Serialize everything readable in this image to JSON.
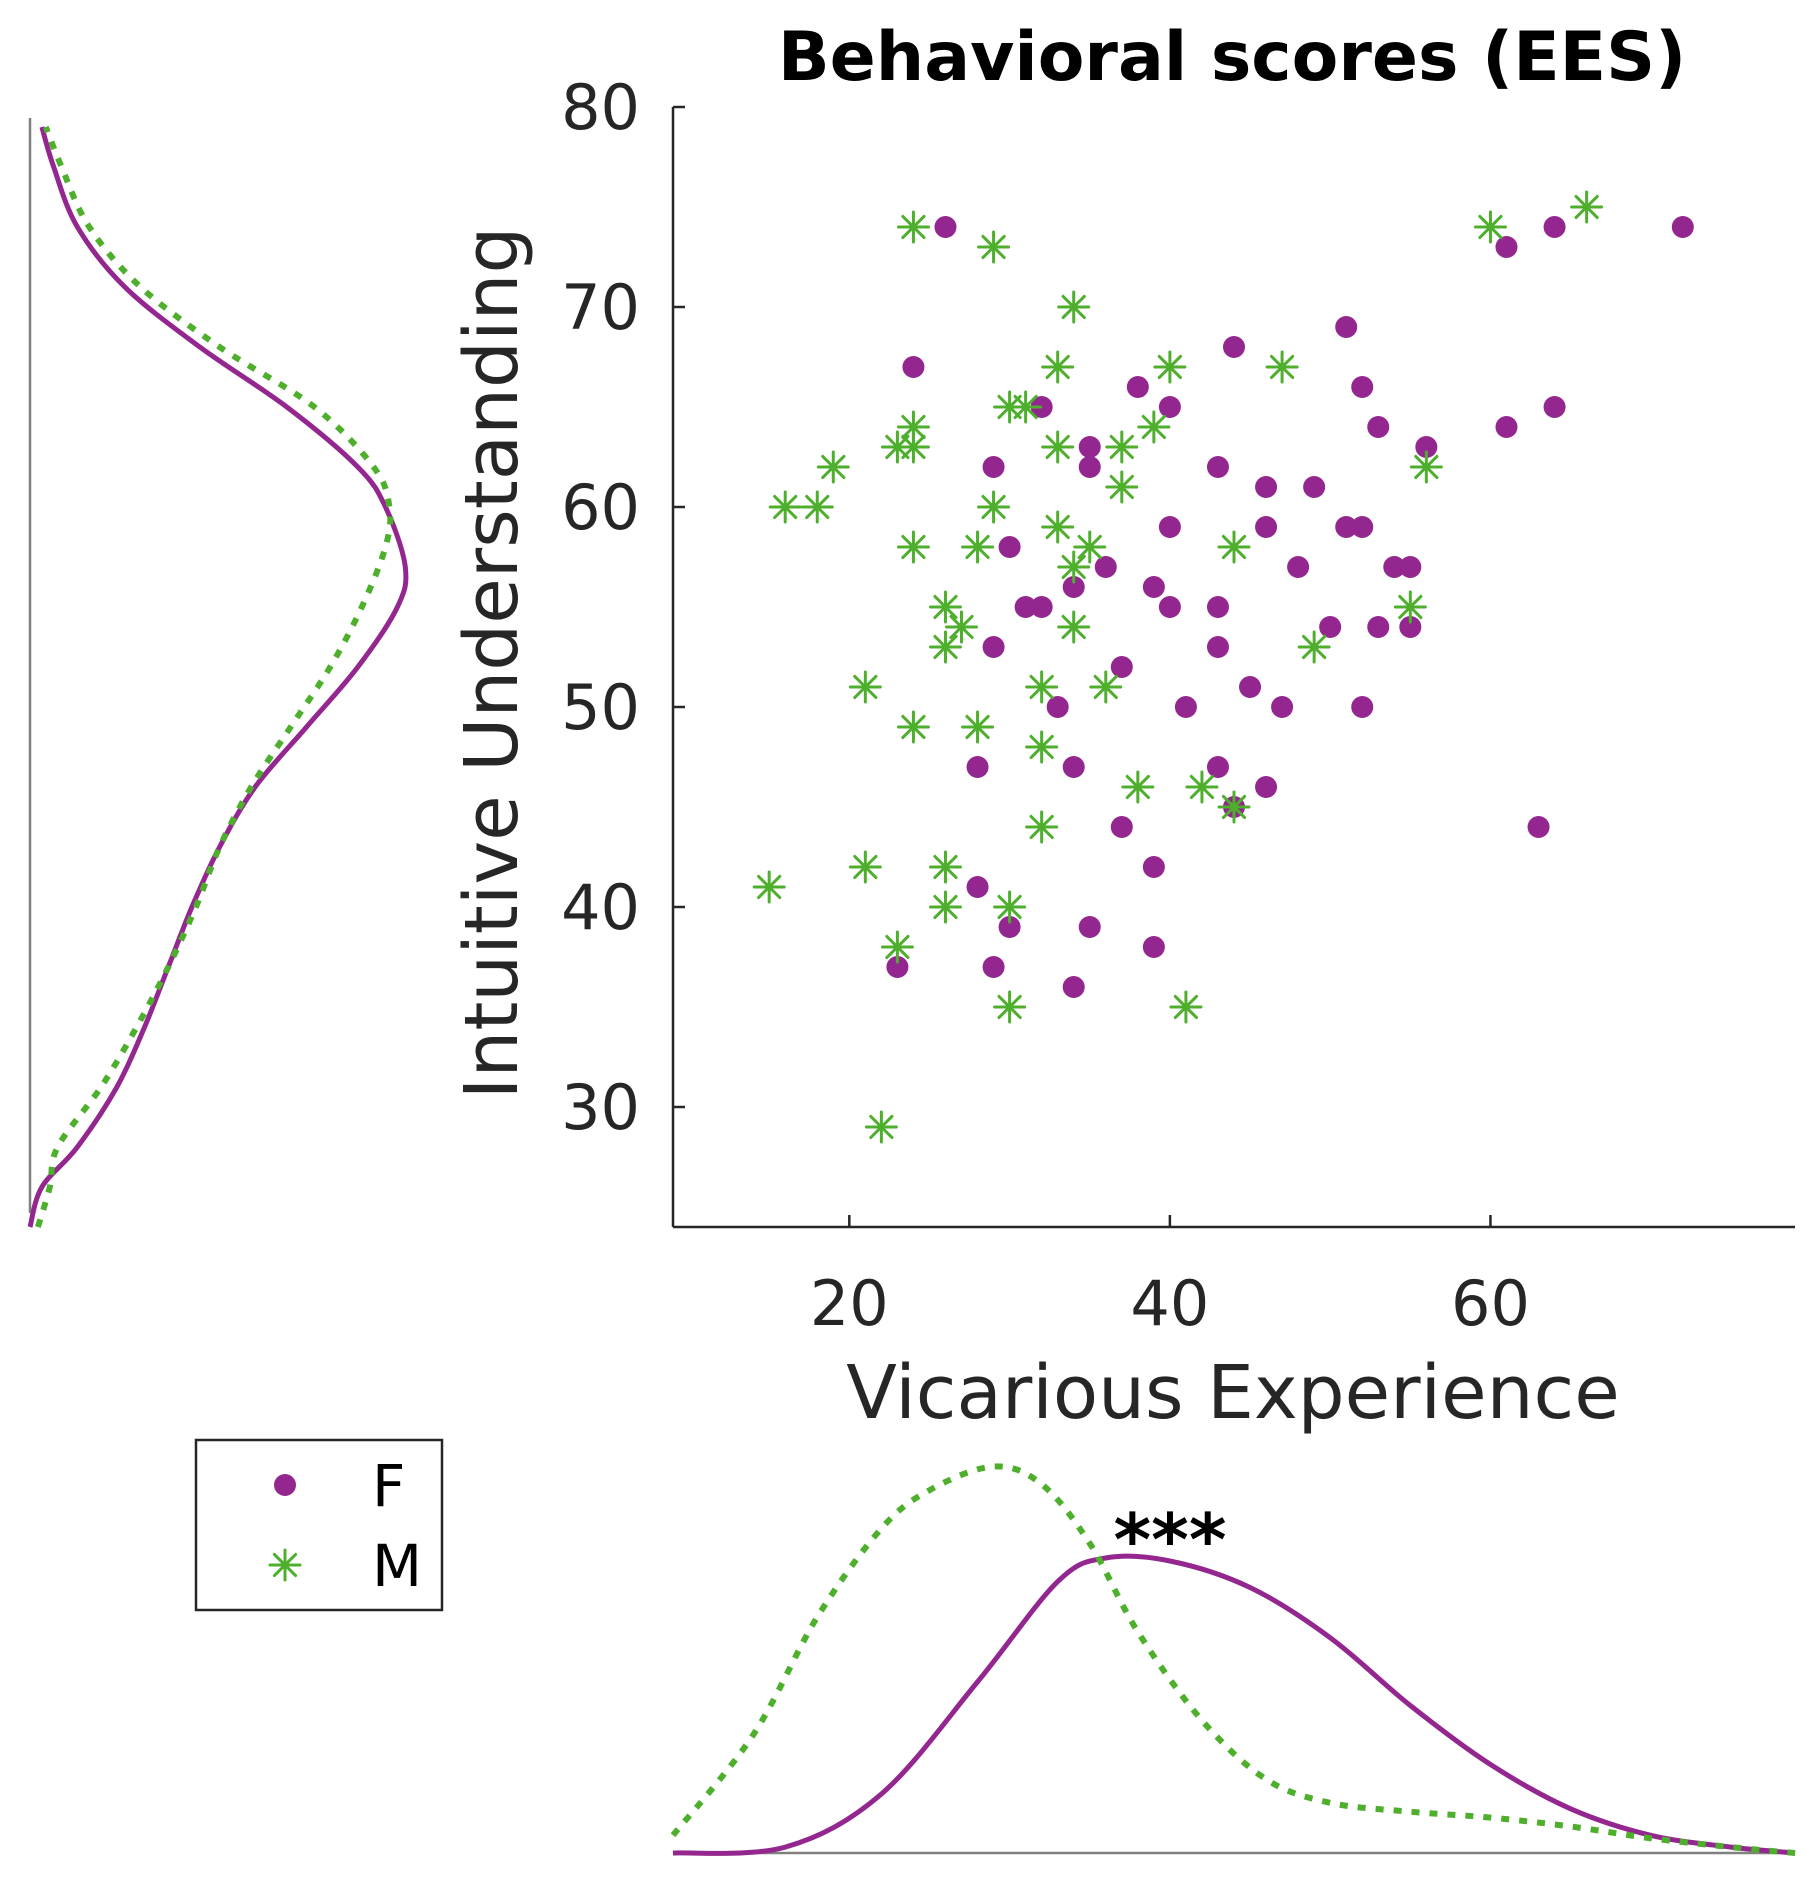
{
  "chart_data": {
    "type": "scatter",
    "title": "Behavioral scores (EES)",
    "xlabel": "Vicarious Experience",
    "ylabel": "Intuitive Understanding",
    "xlim": [
      9,
      79
    ],
    "ylim": [
      24,
      80
    ],
    "xticks": [
      20,
      40,
      60
    ],
    "yticks": [
      30,
      40,
      50,
      60,
      70,
      80
    ],
    "legend": {
      "position": "bottom-left",
      "entries": [
        "F",
        "M"
      ]
    },
    "annotation": "***",
    "colors": {
      "F": "#93278f",
      "M": "#4daf2c",
      "axis": "#262626",
      "marginal_axis": "#808080"
    },
    "series": [
      {
        "name": "F",
        "marker": "circle",
        "color": "#93278f",
        "points": [
          [
            26,
            74
          ],
          [
            24,
            67
          ],
          [
            61,
            73
          ],
          [
            64,
            74
          ],
          [
            72,
            74
          ],
          [
            51,
            69
          ],
          [
            44,
            68
          ],
          [
            38,
            66
          ],
          [
            40,
            65
          ],
          [
            32,
            65
          ],
          [
            52,
            66
          ],
          [
            53,
            64
          ],
          [
            56,
            63
          ],
          [
            61,
            64
          ],
          [
            64,
            65
          ],
          [
            35,
            63
          ],
          [
            35,
            62
          ],
          [
            29,
            62
          ],
          [
            43,
            62
          ],
          [
            46,
            61
          ],
          [
            49,
            61
          ],
          [
            40,
            59
          ],
          [
            46,
            59
          ],
          [
            51,
            59
          ],
          [
            52,
            59
          ],
          [
            30,
            58
          ],
          [
            36,
            57
          ],
          [
            48,
            57
          ],
          [
            54,
            57
          ],
          [
            55,
            57
          ],
          [
            34,
            56
          ],
          [
            39,
            56
          ],
          [
            31,
            55
          ],
          [
            32,
            55
          ],
          [
            40,
            55
          ],
          [
            43,
            55
          ],
          [
            50,
            54
          ],
          [
            53,
            54
          ],
          [
            55,
            54
          ],
          [
            29,
            53
          ],
          [
            43,
            53
          ],
          [
            37,
            52
          ],
          [
            45,
            51
          ],
          [
            33,
            50
          ],
          [
            41,
            50
          ],
          [
            47,
            50
          ],
          [
            52,
            50
          ],
          [
            28,
            47
          ],
          [
            34,
            47
          ],
          [
            43,
            47
          ],
          [
            46,
            46
          ],
          [
            44,
            45
          ],
          [
            37,
            44
          ],
          [
            63,
            44
          ],
          [
            39,
            42
          ],
          [
            28,
            41
          ],
          [
            30,
            39
          ],
          [
            35,
            39
          ],
          [
            39,
            38
          ],
          [
            23,
            37
          ],
          [
            29,
            37
          ],
          [
            34,
            36
          ]
        ]
      },
      {
        "name": "M",
        "marker": "asterisk",
        "color": "#4daf2c",
        "points": [
          [
            24,
            74
          ],
          [
            29,
            73
          ],
          [
            60,
            74
          ],
          [
            66,
            75
          ],
          [
            34,
            70
          ],
          [
            33,
            67
          ],
          [
            40,
            67
          ],
          [
            47,
            67
          ],
          [
            30,
            65
          ],
          [
            31,
            65
          ],
          [
            24,
            64
          ],
          [
            39,
            64
          ],
          [
            23,
            63
          ],
          [
            24,
            63
          ],
          [
            33,
            63
          ],
          [
            37,
            63
          ],
          [
            19,
            62
          ],
          [
            56,
            62
          ],
          [
            37,
            61
          ],
          [
            16,
            60
          ],
          [
            18,
            60
          ],
          [
            29,
            60
          ],
          [
            33,
            59
          ],
          [
            24,
            58
          ],
          [
            28,
            58
          ],
          [
            35,
            58
          ],
          [
            44,
            58
          ],
          [
            34,
            57
          ],
          [
            26,
            55
          ],
          [
            55,
            55
          ],
          [
            27,
            54
          ],
          [
            34,
            54
          ],
          [
            26,
            53
          ],
          [
            49,
            53
          ],
          [
            21,
            51
          ],
          [
            32,
            51
          ],
          [
            36,
            51
          ],
          [
            24,
            49
          ],
          [
            28,
            49
          ],
          [
            32,
            48
          ],
          [
            38,
            46
          ],
          [
            42,
            46
          ],
          [
            44,
            45
          ],
          [
            32,
            44
          ],
          [
            21,
            42
          ],
          [
            26,
            42
          ],
          [
            15,
            41
          ],
          [
            26,
            40
          ],
          [
            30,
            40
          ],
          [
            23,
            38
          ],
          [
            30,
            35
          ],
          [
            41,
            35
          ],
          [
            22,
            29
          ]
        ]
      }
    ],
    "marginal_x": {
      "F": [
        [
          9,
          0.0
        ],
        [
          16,
          0.02
        ],
        [
          22,
          0.2
        ],
        [
          28,
          0.58
        ],
        [
          33,
          0.92
        ],
        [
          36,
          1.0
        ],
        [
          40,
          0.99
        ],
        [
          45,
          0.9
        ],
        [
          50,
          0.73
        ],
        [
          55,
          0.5
        ],
        [
          60,
          0.3
        ],
        [
          65,
          0.15
        ],
        [
          70,
          0.06
        ],
        [
          75,
          0.02
        ],
        [
          79,
          0.0
        ]
      ],
      "M": [
        [
          9,
          0.06
        ],
        [
          14,
          0.4
        ],
        [
          18,
          0.8
        ],
        [
          22,
          1.1
        ],
        [
          25,
          1.23
        ],
        [
          29,
          1.31
        ],
        [
          32,
          1.25
        ],
        [
          35,
          1.05
        ],
        [
          38,
          0.75
        ],
        [
          42,
          0.45
        ],
        [
          46,
          0.25
        ],
        [
          50,
          0.17
        ],
        [
          55,
          0.14
        ],
        [
          60,
          0.12
        ],
        [
          65,
          0.09
        ],
        [
          70,
          0.05
        ],
        [
          75,
          0.02
        ],
        [
          79,
          0.0
        ]
      ]
    },
    "marginal_y": {
      "F": [
        [
          24,
          0.0
        ],
        [
          26,
          0.03
        ],
        [
          28,
          0.12
        ],
        [
          31,
          0.22
        ],
        [
          34,
          0.29
        ],
        [
          37,
          0.35
        ],
        [
          40,
          0.41
        ],
        [
          43,
          0.48
        ],
        [
          46,
          0.57
        ],
        [
          49,
          0.7
        ],
        [
          52,
          0.83
        ],
        [
          55,
          0.93
        ],
        [
          57,
          0.95
        ],
        [
          60,
          0.9
        ],
        [
          62,
          0.83
        ],
        [
          65,
          0.65
        ],
        [
          68,
          0.43
        ],
        [
          71,
          0.24
        ],
        [
          74,
          0.12
        ],
        [
          77,
          0.06
        ],
        [
          79,
          0.03
        ]
      ],
      "M": [
        [
          24,
          0.02
        ],
        [
          26,
          0.05
        ],
        [
          28,
          0.07
        ],
        [
          31,
          0.18
        ],
        [
          34,
          0.27
        ],
        [
          37,
          0.35
        ],
        [
          40,
          0.42
        ],
        [
          43,
          0.48
        ],
        [
          46,
          0.56
        ],
        [
          49,
          0.66
        ],
        [
          52,
          0.76
        ],
        [
          55,
          0.84
        ],
        [
          58,
          0.9
        ],
        [
          60,
          0.91
        ],
        [
          62,
          0.87
        ],
        [
          65,
          0.72
        ],
        [
          68,
          0.48
        ],
        [
          71,
          0.28
        ],
        [
          74,
          0.15
        ],
        [
          77,
          0.08
        ],
        [
          79,
          0.04
        ]
      ]
    }
  }
}
